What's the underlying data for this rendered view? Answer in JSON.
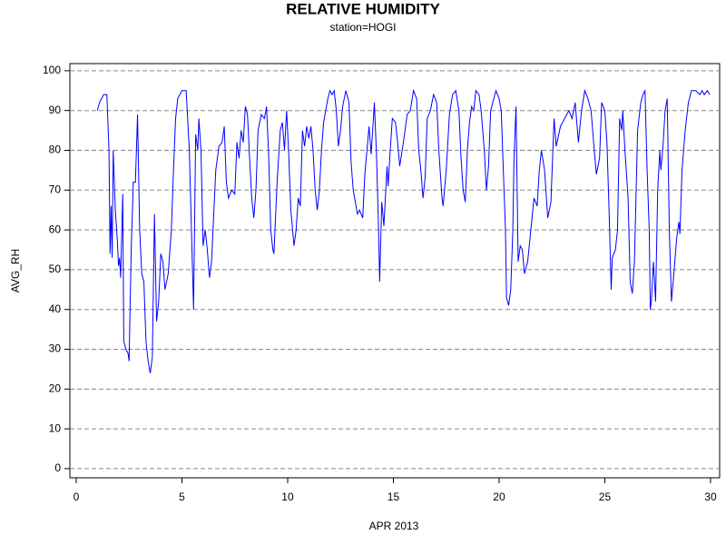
{
  "chart_data": {
    "type": "line",
    "title": "RELATIVE HUMIDITY",
    "subtitle": "station=HOGI",
    "x_label": "APR 2013",
    "y_label": "AVG_RH",
    "xlim": [
      -0.3,
      30.43
    ],
    "ylim": [
      -2.3,
      101.8
    ],
    "xticks": [
      0,
      5,
      10,
      15,
      20,
      25,
      30
    ],
    "yticks": [
      0,
      10,
      20,
      30,
      40,
      50,
      60,
      70,
      80,
      90,
      100
    ],
    "grid": true,
    "series": [
      {
        "name": "AVG_RH",
        "color": "#0000ff",
        "x": [
          1.0,
          1.1,
          1.3,
          1.45,
          1.55,
          1.6,
          1.65,
          1.7,
          1.75,
          1.85,
          1.95,
          2.0,
          2.05,
          2.1,
          2.2,
          2.25,
          2.35,
          2.45,
          2.5,
          2.6,
          2.7,
          2.8,
          2.9,
          3.0,
          3.1,
          3.2,
          3.3,
          3.4,
          3.5,
          3.6,
          3.7,
          3.8,
          3.9,
          4.0,
          4.1,
          4.2,
          4.35,
          4.5,
          4.6,
          4.7,
          4.8,
          5.0,
          5.2,
          5.35,
          5.45,
          5.55,
          5.65,
          5.75,
          5.8,
          5.9,
          6.0,
          6.1,
          6.2,
          6.3,
          6.4,
          6.6,
          6.75,
          6.9,
          7.0,
          7.1,
          7.2,
          7.35,
          7.5,
          7.6,
          7.7,
          7.8,
          7.9,
          8.0,
          8.1,
          8.2,
          8.3,
          8.4,
          8.5,
          8.6,
          8.75,
          8.9,
          9.0,
          9.1,
          9.2,
          9.3,
          9.35,
          9.5,
          9.65,
          9.75,
          9.85,
          9.95,
          10.05,
          10.15,
          10.3,
          10.4,
          10.5,
          10.6,
          10.7,
          10.8,
          10.9,
          11.0,
          11.1,
          11.2,
          11.3,
          11.4,
          11.5,
          11.6,
          11.7,
          11.8,
          11.9,
          12.0,
          12.1,
          12.2,
          12.3,
          12.4,
          12.5,
          12.6,
          12.75,
          12.9,
          13.0,
          13.1,
          13.2,
          13.3,
          13.4,
          13.55,
          13.65,
          13.75,
          13.85,
          13.95,
          14.1,
          14.2,
          14.3,
          14.35,
          14.45,
          14.55,
          14.7,
          14.75,
          14.85,
          14.95,
          15.1,
          15.2,
          15.3,
          15.5,
          15.65,
          15.8,
          15.95,
          16.1,
          16.2,
          16.3,
          16.4,
          16.5,
          16.6,
          16.75,
          16.9,
          17.05,
          17.15,
          17.3,
          17.35,
          17.5,
          17.65,
          17.8,
          17.95,
          18.1,
          18.2,
          18.3,
          18.4,
          18.5,
          18.6,
          18.7,
          18.8,
          18.9,
          19.05,
          19.15,
          19.3,
          19.4,
          19.5,
          19.6,
          19.7,
          19.85,
          20.0,
          20.1,
          20.2,
          20.3,
          20.35,
          20.45,
          20.55,
          20.65,
          20.7,
          20.8,
          20.9,
          21.0,
          21.1,
          21.2,
          21.35,
          21.5,
          21.65,
          21.8,
          21.9,
          22.0,
          22.15,
          22.3,
          22.45,
          22.6,
          22.7,
          22.9,
          23.1,
          23.3,
          23.45,
          23.6,
          23.75,
          23.9,
          24.05,
          24.2,
          24.35,
          24.5,
          24.6,
          24.75,
          24.85,
          25.0,
          25.1,
          25.2,
          25.3,
          25.35,
          25.5,
          25.6,
          25.7,
          25.8,
          25.85,
          25.95,
          26.1,
          26.2,
          26.3,
          26.4,
          26.55,
          26.7,
          26.8,
          26.9,
          27.0,
          27.1,
          27.15,
          27.2,
          27.3,
          27.4,
          27.5,
          27.6,
          27.65,
          27.75,
          27.85,
          27.95,
          28.05,
          28.15,
          28.25,
          28.4,
          28.5,
          28.55,
          28.65,
          28.8,
          28.95,
          29.1,
          29.3,
          29.5,
          29.6,
          29.7,
          29.85,
          29.95
        ],
        "values": [
          90,
          92,
          94,
          94,
          80,
          54,
          66,
          53,
          80,
          65,
          57,
          51,
          53,
          48,
          69,
          32,
          30,
          29,
          27,
          55,
          72,
          72,
          89,
          60,
          49,
          47,
          32,
          27,
          24,
          28,
          64,
          37,
          42,
          54,
          52,
          45,
          49,
          60,
          75,
          88,
          93,
          95,
          95,
          80,
          60,
          40,
          84,
          80,
          88,
          80,
          56,
          60,
          55,
          48,
          52,
          75,
          81,
          82,
          86,
          72,
          68,
          70,
          69,
          82,
          78,
          85,
          82,
          91,
          89,
          78,
          68,
          63,
          70,
          85,
          89,
          88,
          91,
          79,
          60,
          55,
          54,
          72,
          85,
          87,
          80,
          90,
          79,
          65,
          56,
          60,
          68,
          66,
          85,
          81,
          86,
          83,
          86,
          80,
          70,
          65,
          70,
          80,
          87,
          90,
          93,
          95,
          94,
          95,
          90,
          81,
          85,
          91,
          95,
          92,
          77,
          70,
          67,
          64,
          65,
          63,
          74,
          80,
          86,
          79,
          92,
          79,
          60,
          47,
          67,
          61,
          76,
          71,
          80,
          88,
          87,
          82,
          76,
          83,
          89,
          90,
          95,
          93,
          80,
          75,
          68,
          73,
          88,
          90,
          94,
          92,
          80,
          68,
          66,
          75,
          89,
          94,
          95,
          90,
          78,
          70,
          67,
          80,
          87,
          91,
          90,
          95,
          94,
          90,
          80,
          70,
          76,
          90,
          92,
          95,
          93,
          90,
          75,
          60,
          43,
          41,
          45,
          60,
          77,
          91,
          52,
          56,
          55,
          49,
          52,
          60,
          68,
          66,
          75,
          80,
          75,
          63,
          67,
          88,
          81,
          86,
          88,
          90,
          88,
          92,
          82,
          90,
          95,
          93,
          90,
          80,
          74,
          78,
          92,
          90,
          82,
          65,
          45,
          53,
          55,
          60,
          88,
          85,
          90,
          80,
          68,
          47,
          44,
          52,
          85,
          92,
          94,
          95,
          75,
          60,
          40,
          42,
          52,
          42,
          70,
          80,
          75,
          81,
          90,
          93,
          60,
          42,
          48,
          58,
          62,
          59,
          75,
          85,
          92,
          95,
          95,
          94,
          95,
          94,
          95,
          94
        ]
      }
    ]
  }
}
